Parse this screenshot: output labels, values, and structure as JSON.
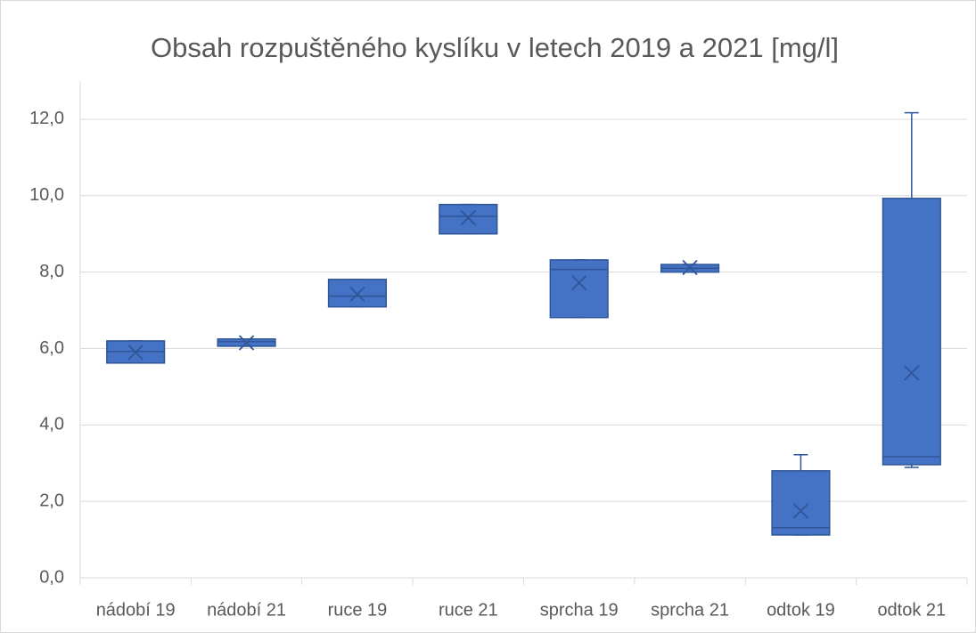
{
  "chart_data": {
    "type": "box",
    "title": "Obsah rozpuštěného kyslíku v letech 2019 a 2021 [mg/l]",
    "categories": [
      "nádobí 19",
      "nádobí 21",
      "ruce 19",
      "ruce 21",
      "sprcha 19",
      "sprcha 21",
      "odtok 19",
      "odtok 21"
    ],
    "series": [
      {
        "color": "#4472c4",
        "values": [
          {
            "min": 5.62,
            "q1": 5.62,
            "median": 5.92,
            "q3": 6.2,
            "max": 6.2,
            "mean": 5.9
          },
          {
            "min": 6.06,
            "q1": 6.06,
            "median": 6.18,
            "q3": 6.25,
            "max": 6.25,
            "mean": 6.15
          },
          {
            "min": 7.09,
            "q1": 7.09,
            "median": 7.37,
            "q3": 7.81,
            "max": 7.81,
            "mean": 7.42
          },
          {
            "min": 9.0,
            "q1": 9.0,
            "median": 9.46,
            "q3": 9.77,
            "max": 9.77,
            "mean": 9.42
          },
          {
            "min": 6.81,
            "q1": 6.81,
            "median": 8.07,
            "q3": 8.32,
            "max": 8.32,
            "mean": 7.72
          },
          {
            "min": 8.0,
            "q1": 8.0,
            "median": 8.1,
            "q3": 8.2,
            "max": 8.2,
            "mean": 8.12
          },
          {
            "min": 1.12,
            "q1": 1.12,
            "median": 1.31,
            "q3": 2.8,
            "max": 3.22,
            "mean": 1.75
          },
          {
            "min": 2.89,
            "q1": 2.96,
            "median": 3.17,
            "q3": 9.93,
            "max": 12.17,
            "mean": 5.36
          }
        ]
      }
    ],
    "ylim": [
      0,
      13
    ],
    "yticks": [
      {
        "value": 0,
        "label": "0,0"
      },
      {
        "value": 2,
        "label": "2,0"
      },
      {
        "value": 4,
        "label": "4,0"
      },
      {
        "value": 6,
        "label": "6,0"
      },
      {
        "value": 8,
        "label": "8,0"
      },
      {
        "value": 10,
        "label": "10,0"
      },
      {
        "value": 12,
        "label": "12,0"
      }
    ],
    "grid": true
  }
}
